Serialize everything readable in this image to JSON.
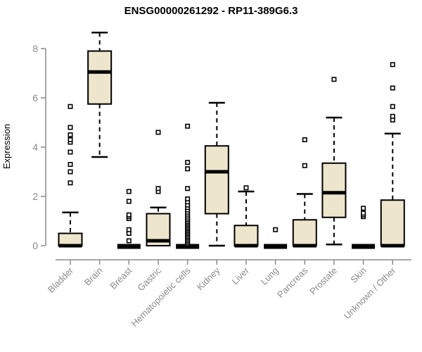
{
  "chart_data": {
    "type": "boxplot",
    "title": "ENSG00000261292 - RP11-389G6.3",
    "ylabel": "Expression",
    "xlabel": "",
    "yticks": [
      0,
      2,
      4,
      6,
      8
    ],
    "ylim": [
      0,
      8.8
    ],
    "grid": false,
    "legend": "none",
    "categories": [
      "Bladder",
      "Brain",
      "Breast",
      "Gastric",
      "Hematopoietic cells",
      "Kidney",
      "Liver",
      "Lung",
      "Pancreas",
      "Prostate",
      "Skin",
      "Unknown / Other"
    ],
    "series": [
      {
        "name": "Bladder",
        "low": 0,
        "q1": 0,
        "median": 0,
        "q3": 0.5,
        "high": 1.35,
        "outliers": [
          2.55,
          3.0,
          3.3,
          3.8,
          4.2,
          4.3,
          4.5,
          4.8,
          5.65
        ]
      },
      {
        "name": "Brain",
        "low": 3.6,
        "q1": 5.75,
        "median": 7.05,
        "q3": 7.9,
        "high": 8.65,
        "outliers": []
      },
      {
        "name": "Breast",
        "low": 0,
        "q1": 0,
        "median": 0,
        "q3": 0,
        "high": 0,
        "outliers": [
          0.2,
          0.5,
          0.65,
          1.1,
          1.18,
          1.25,
          1.8,
          2.2
        ]
      },
      {
        "name": "Gastric",
        "low": 0,
        "q1": 0,
        "median": 0.2,
        "q3": 1.3,
        "high": 1.55,
        "outliers": [
          2.2,
          2.32,
          4.6
        ]
      },
      {
        "name": "Hematopoietic cells",
        "low": 0,
        "q1": 0,
        "median": 0,
        "q3": 0,
        "high": 0,
        "outliers": [
          0.08,
          0.14,
          0.2,
          0.26,
          0.32,
          0.38,
          0.44,
          0.5,
          0.56,
          0.62,
          0.68,
          0.74,
          0.8,
          0.86,
          0.92,
          0.98,
          1.05,
          1.12,
          1.2,
          1.28,
          1.36,
          1.45,
          1.55,
          1.65,
          1.78,
          1.9,
          2.32,
          3.12,
          3.38,
          4.85
        ]
      },
      {
        "name": "Kidney",
        "low": 0,
        "q1": 1.3,
        "median": 3.0,
        "q3": 4.05,
        "high": 5.8,
        "outliers": []
      },
      {
        "name": "Liver",
        "low": 0,
        "q1": 0,
        "median": 0,
        "q3": 0.82,
        "high": 2.2,
        "outliers": [
          2.35
        ]
      },
      {
        "name": "Lung",
        "low": 0,
        "q1": 0,
        "median": 0,
        "q3": 0,
        "high": 0,
        "outliers": [
          0.65
        ]
      },
      {
        "name": "Pancreas",
        "low": 0,
        "q1": 0,
        "median": 0,
        "q3": 1.05,
        "high": 2.1,
        "outliers": [
          3.25,
          4.3
        ]
      },
      {
        "name": "Prostate",
        "low": 0.05,
        "q1": 1.15,
        "median": 2.15,
        "q3": 3.35,
        "high": 5.2,
        "outliers": [
          6.75
        ]
      },
      {
        "name": "Skin",
        "low": 0,
        "q1": 0,
        "median": 0,
        "q3": 0,
        "high": 0,
        "outliers": [
          1.18,
          1.25,
          1.32,
          1.52
        ]
      },
      {
        "name": "Unknown / Other",
        "low": 0,
        "q1": 0,
        "median": 0,
        "q3": 1.85,
        "high": 4.55,
        "outliers": [
          5.1,
          5.25,
          5.65,
          6.4,
          7.35
        ]
      }
    ]
  },
  "colors": {
    "box_fill": "#EDE6CD",
    "box_border": "#000000",
    "median": "#000000",
    "whisker": "#000000",
    "outlier_fill": "#FFFFFF",
    "axis": "#8B8B8B",
    "tick_label": "#8B8B8B",
    "axis_label": "#8B8B8B",
    "category_label": "#8B8B8B",
    "title": "#000000",
    "background": "#FFFFFF"
  }
}
